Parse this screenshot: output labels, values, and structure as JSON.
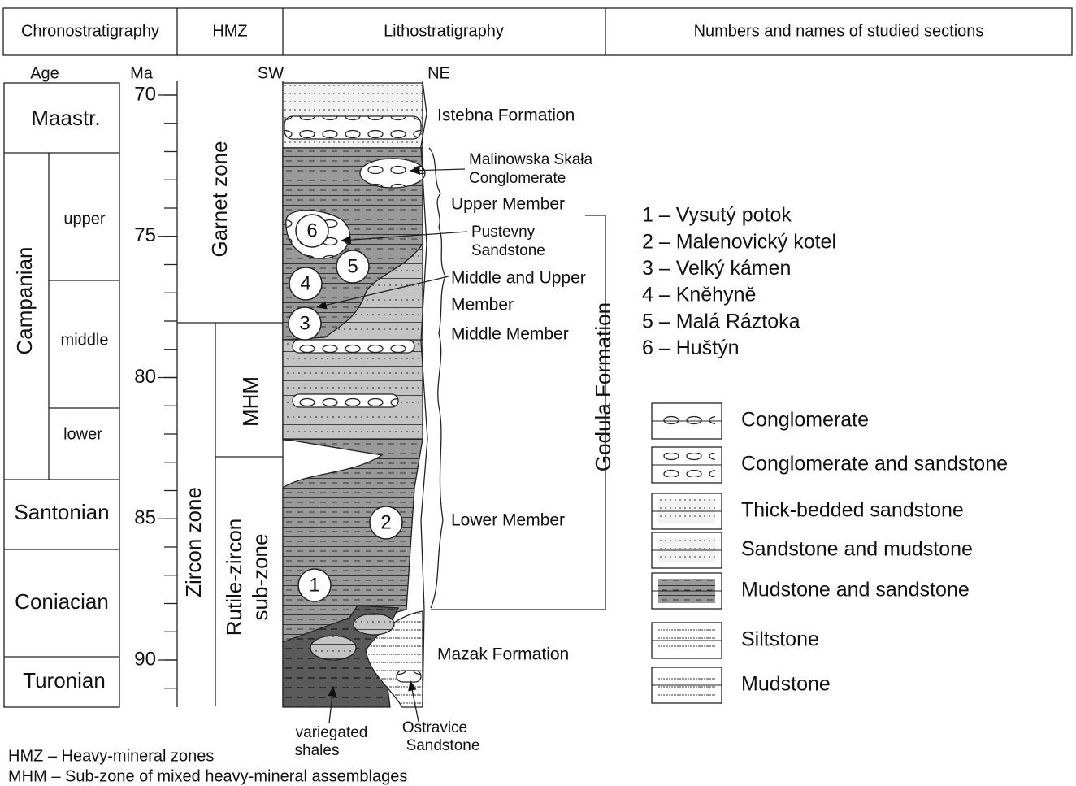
{
  "header": [
    "Chronostratigraphy",
    "HMZ",
    "Lithostratigraphy",
    "Numbers and names of studied sections"
  ],
  "axis_labels": {
    "age": "Age",
    "ma": "Ma",
    "sw": "SW",
    "ne": "NE"
  },
  "ma_ticks": [
    70,
    75,
    80,
    85,
    90
  ],
  "stages": [
    "Maastr.",
    "Campanian",
    "Santonian",
    "Coniacian",
    "Turonian"
  ],
  "substages": [
    "upper",
    "middle",
    "lower"
  ],
  "zones": {
    "garnet": "Garnet zone",
    "zircon": "Zircon zone",
    "mhm": "MHM",
    "rutile": [
      "Rutile-zircon",
      "sub-zone"
    ]
  },
  "units": {
    "istebna": "Istebna Formation",
    "malinowska": [
      "Malinowska Skała",
      "Conglomerate"
    ],
    "upper": "Upper Member",
    "pustevny": [
      "Pustevny",
      "Sandstone"
    ],
    "middle_upper": [
      "Middle and Upper",
      "Member"
    ],
    "middle": "Middle Member",
    "godula": "Godula Formation",
    "lower": "Lower Member",
    "mazak": "Mazak Formation",
    "variegated": [
      "variegated",
      "shales"
    ],
    "ostravice": [
      "Ostravice",
      "Sandstone"
    ]
  },
  "markers": [
    "1",
    "2",
    "3",
    "4",
    "5",
    "6"
  ],
  "sections": [
    "1 – Vysutý potok",
    "2 – Malenovický kotel",
    "3 – Velký kámen",
    "4 – Kněhyně",
    "5 – Malá Ráztoka",
    "6 – Huštýn"
  ],
  "legend": [
    "Conglomerate",
    "Conglomerate and sandstone",
    "Thick-bedded sandstone",
    "Sandstone and mudstone",
    "Mudstone and sandstone",
    "Siltstone",
    "Mudstone"
  ],
  "footnotes": [
    "HMZ – Heavy-mineral zones",
    "MHM – Sub-zone of mixed heavy-mineral assemblages"
  ]
}
